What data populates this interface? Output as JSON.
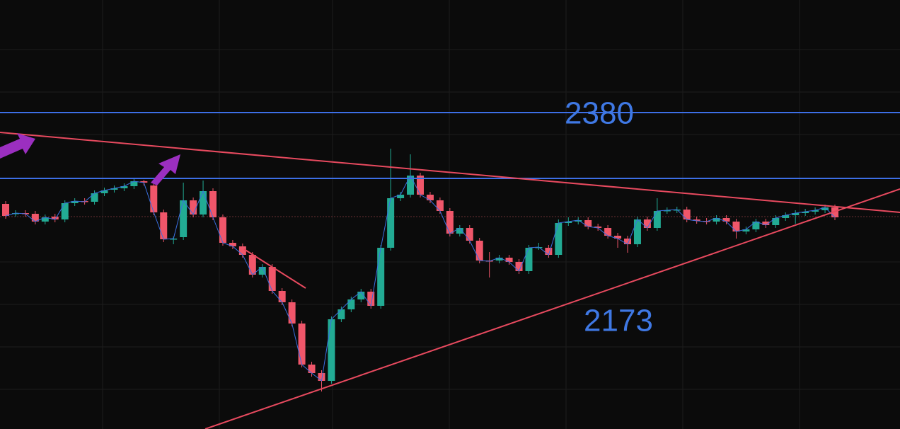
{
  "chart_data": {
    "type": "candlestick",
    "annotations": [
      "2380",
      "2173"
    ],
    "ylim": [
      1934,
      2540
    ],
    "up_color": "#22ab94",
    "down_color": "#f0566a",
    "close_line_color": "#3a6fe0",
    "open": [
      2252,
      2238,
      2239,
      2238,
      2227,
      2234,
      2230,
      2253,
      2256,
      2255,
      2267,
      2272,
      2274,
      2277,
      2284,
      2278,
      2240,
      2202,
      2205,
      2257,
      2237,
      2270,
      2233,
      2197,
      2192,
      2180,
      2152,
      2163,
      2129,
      2113,
      2083,
      2025,
      2013,
      2002,
      2089,
      2103,
      2117,
      2128,
      2108,
      2190,
      2260,
      2265,
      2292,
      2265,
      2257,
      2242,
      2210,
      2218,
      2200,
      2172,
      2172,
      2176,
      2170,
      2157,
      2190,
      2190,
      2180,
      2225,
      2227,
      2229,
      2220,
      2218,
      2207,
      2203,
      2195,
      2230,
      2218,
      2242,
      2243,
      2244,
      2230,
      2228,
      2227,
      2232,
      2227,
      2213,
      2216,
      2227,
      2222,
      2232,
      2236,
      2239,
      2241,
      2243,
      2247
    ],
    "high": [
      2256,
      2243,
      2243,
      2242,
      2237,
      2238,
      2257,
      2260,
      2260,
      2271,
      2275,
      2278,
      2281,
      2288,
      2286,
      2282,
      2244,
      2206,
      2282,
      2261,
      2285,
      2274,
      2237,
      2201,
      2196,
      2184,
      2167,
      2167,
      2133,
      2117,
      2087,
      2029,
      2017,
      2093,
      2107,
      2121,
      2132,
      2132,
      2194,
      2330,
      2269,
      2322,
      2296,
      2269,
      2261,
      2246,
      2222,
      2222,
      2204,
      2184,
      2180,
      2180,
      2174,
      2194,
      2197,
      2194,
      2230,
      2233,
      2233,
      2233,
      2224,
      2222,
      2211,
      2207,
      2234,
      2234,
      2260,
      2247,
      2248,
      2248,
      2234,
      2232,
      2236,
      2236,
      2231,
      2220,
      2231,
      2231,
      2236,
      2240,
      2243,
      2245,
      2247,
      2251,
      2251
    ],
    "low": [
      2231,
      2234,
      2234,
      2223,
      2223,
      2226,
      2226,
      2249,
      2251,
      2251,
      2263,
      2268,
      2270,
      2273,
      2278,
      2236,
      2198,
      2195,
      2201,
      2233,
      2233,
      2229,
      2193,
      2188,
      2176,
      2148,
      2148,
      2125,
      2109,
      2079,
      2021,
      2008,
      1987,
      1998,
      2085,
      2099,
      2113,
      2104,
      2104,
      2186,
      2256,
      2261,
      2261,
      2253,
      2238,
      2206,
      2206,
      2196,
      2168,
      2148,
      2168,
      2166,
      2153,
      2153,
      2187,
      2176,
      2176,
      2221,
      2223,
      2216,
      2214,
      2203,
      2190,
      2183,
      2191,
      2214,
      2214,
      2238,
      2239,
      2226,
      2224,
      2223,
      2223,
      2223,
      2203,
      2209,
      2212,
      2218,
      2218,
      2228,
      2224,
      2235,
      2237,
      2239,
      2229
    ],
    "close": [
      2235,
      2239,
      2238,
      2227,
      2233,
      2230,
      2253,
      2256,
      2255,
      2267,
      2271,
      2274,
      2277,
      2284,
      2282,
      2240,
      2202,
      2203,
      2257,
      2237,
      2270,
      2233,
      2197,
      2192,
      2180,
      2152,
      2163,
      2129,
      2113,
      2083,
      2025,
      2013,
      2002,
      2089,
      2103,
      2117,
      2128,
      2108,
      2190,
      2260,
      2265,
      2292,
      2265,
      2257,
      2242,
      2210,
      2218,
      2200,
      2172,
      2171,
      2176,
      2170,
      2157,
      2190,
      2191,
      2180,
      2225,
      2227,
      2229,
      2220,
      2218,
      2207,
      2203,
      2195,
      2230,
      2218,
      2242,
      2243,
      2244,
      2230,
      2228,
      2227,
      2232,
      2227,
      2213,
      2216,
      2227,
      2222,
      2232,
      2236,
      2239,
      2241,
      2243,
      2247,
      2233
    ]
  }
}
